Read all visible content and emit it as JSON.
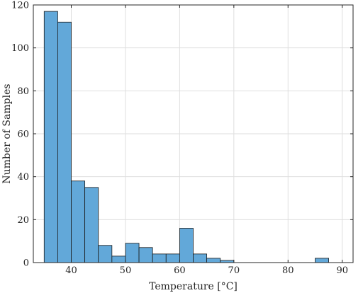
{
  "chart_data": {
    "type": "bar",
    "subtype": "histogram",
    "xlabel": "Temperature [°C]",
    "ylabel": "Number of Samples",
    "xlim": [
      33,
      92
    ],
    "ylim": [
      0,
      120
    ],
    "xticks": [
      40,
      50,
      60,
      70,
      80,
      90
    ],
    "yticks": [
      0,
      20,
      40,
      60,
      80,
      100,
      120
    ],
    "grid": true,
    "bar_color": "#62a8d9",
    "bar_edge_color": "#1a1a1a",
    "bins": [
      {
        "x0": 35.0,
        "x1": 37.5,
        "value": 117
      },
      {
        "x0": 37.5,
        "x1": 40.0,
        "value": 112
      },
      {
        "x0": 40.0,
        "x1": 42.5,
        "value": 38
      },
      {
        "x0": 42.5,
        "x1": 45.0,
        "value": 35
      },
      {
        "x0": 45.0,
        "x1": 47.5,
        "value": 8
      },
      {
        "x0": 47.5,
        "x1": 50.0,
        "value": 3
      },
      {
        "x0": 50.0,
        "x1": 52.5,
        "value": 9
      },
      {
        "x0": 52.5,
        "x1": 55.0,
        "value": 7
      },
      {
        "x0": 55.0,
        "x1": 57.5,
        "value": 4
      },
      {
        "x0": 57.5,
        "x1": 60.0,
        "value": 4
      },
      {
        "x0": 60.0,
        "x1": 62.5,
        "value": 16
      },
      {
        "x0": 62.5,
        "x1": 65.0,
        "value": 4
      },
      {
        "x0": 65.0,
        "x1": 67.5,
        "value": 2
      },
      {
        "x0": 67.5,
        "x1": 70.0,
        "value": 1
      },
      {
        "x0": 85.0,
        "x1": 87.5,
        "value": 2
      }
    ]
  }
}
